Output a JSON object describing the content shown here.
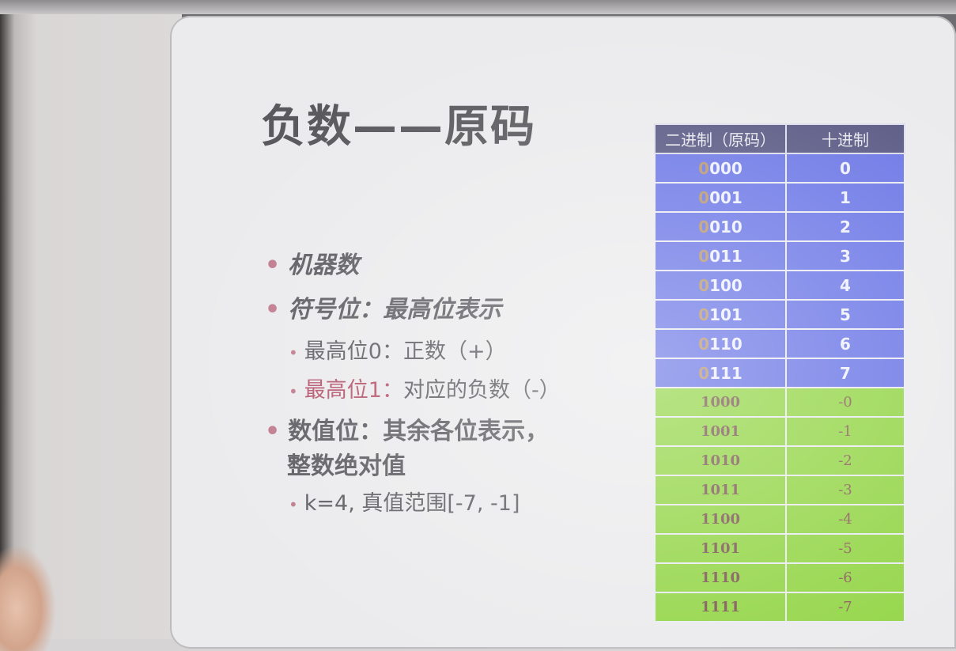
{
  "slide": {
    "title": "负数——原码",
    "bullets": [
      {
        "text": "机器数"
      },
      {
        "text": "符号位：最高位表示"
      },
      {
        "text": "最高位0：正数（+）"
      },
      {
        "text_red": "最高位1：",
        "text_rest": "对应的负数（-）"
      },
      {
        "line1": "数值位：其余各位表示，",
        "line2": "整数绝对值"
      },
      {
        "text": "k=4, 真值范围[-7, -1]"
      }
    ]
  },
  "table": {
    "headers": [
      "二进制（原码）",
      "十进制"
    ],
    "rows": [
      {
        "sign": "0",
        "rest": "000",
        "dec": "0"
      },
      {
        "sign": "0",
        "rest": "001",
        "dec": "1"
      },
      {
        "sign": "0",
        "rest": "010",
        "dec": "2"
      },
      {
        "sign": "0",
        "rest": "011",
        "dec": "3"
      },
      {
        "sign": "0",
        "rest": "100",
        "dec": "4"
      },
      {
        "sign": "0",
        "rest": "101",
        "dec": "5"
      },
      {
        "sign": "0",
        "rest": "110",
        "dec": "6"
      },
      {
        "sign": "0",
        "rest": "111",
        "dec": "7"
      },
      {
        "sign": "1",
        "rest": "000",
        "dec": "-0"
      },
      {
        "sign": "1",
        "rest": "001",
        "dec": "-1"
      },
      {
        "sign": "1",
        "rest": "010",
        "dec": "-2"
      },
      {
        "sign": "1",
        "rest": "011",
        "dec": "-3"
      },
      {
        "sign": "1",
        "rest": "100",
        "dec": "-4"
      },
      {
        "sign": "1",
        "rest": "101",
        "dec": "-5"
      },
      {
        "sign": "1",
        "rest": "110",
        "dec": "-6"
      },
      {
        "sign": "1",
        "rest": "111",
        "dec": "-7"
      }
    ]
  },
  "colors": {
    "positive_rows": "#6d78e6",
    "negative_rows": "#95d64a",
    "header": "#5a5a85",
    "highlight_text": "#b5536b"
  }
}
